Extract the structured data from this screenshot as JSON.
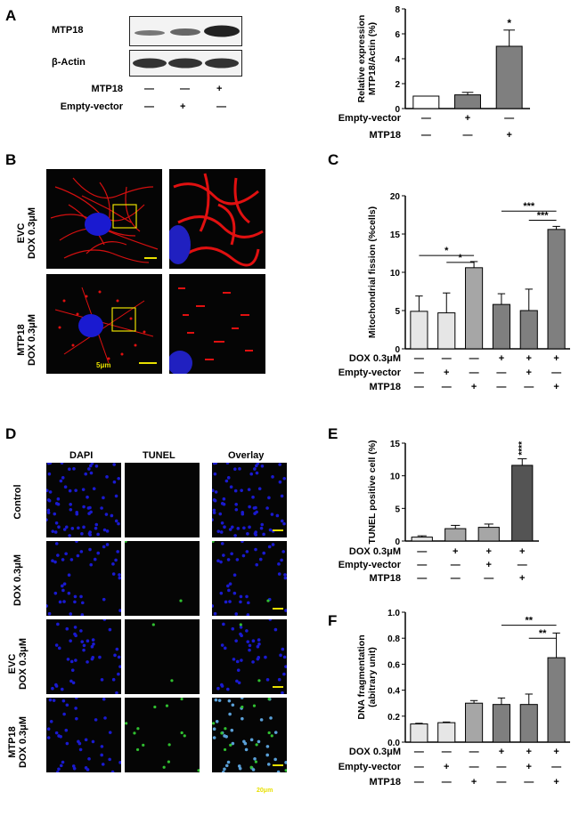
{
  "panels": {
    "A": "A",
    "B": "B",
    "C": "C",
    "D": "D",
    "E": "E",
    "F": "F"
  },
  "blot": {
    "rows": [
      "MTP18",
      "β-Actin"
    ],
    "conditions": [
      {
        "label": "MTP18",
        "marks": [
          "—",
          "—",
          "+"
        ]
      },
      {
        "label": "Empty-vector",
        "marks": [
          "—",
          "+",
          "—"
        ]
      }
    ]
  },
  "micro_b": {
    "rows": [
      {
        "line1": "EVC",
        "line2": "DOX 0.3μM"
      },
      {
        "line1": "MTP18",
        "line2": "DOX 0.3μM"
      }
    ],
    "scale": "5μm"
  },
  "micro_d": {
    "columns": [
      "DAPI",
      "TUNEL",
      "Overlay"
    ],
    "rows": [
      {
        "line1": "Control",
        "line2": ""
      },
      {
        "line1": "DOX 0.3μM",
        "line2": ""
      },
      {
        "line1": "EVC",
        "line2": "DOX 0.3μM"
      },
      {
        "line1": "MTP18",
        "line2": "DOX 0.3μM"
      }
    ],
    "scale": "20μm"
  },
  "colors": {
    "white": "#ffffff",
    "light": "#e6e6e6",
    "mid": "#a6a6a6",
    "darkmid": "#7f7f7f",
    "dark": "#545454",
    "red": "#e01010",
    "blue": "#1a1ad0",
    "green": "#30c030",
    "yellow": "#e8e000"
  },
  "chart_data": [
    {
      "id": "A",
      "type": "bar",
      "ylabel_lines": [
        "Relative expression",
        "MTP18/Actin (%)"
      ],
      "ylim": [
        0,
        8
      ],
      "yticks": [
        0,
        2,
        4,
        6,
        8
      ],
      "values": [
        1.0,
        1.1,
        5.0
      ],
      "errors": [
        0,
        0.2,
        1.3
      ],
      "fills": [
        "#ffffff",
        "#7f7f7f",
        "#7f7f7f"
      ],
      "signif": [
        "",
        "",
        "*"
      ],
      "conditions": [
        {
          "label": "Empty-vector",
          "marks": [
            "—",
            "+",
            "—"
          ]
        },
        {
          "label": "MTP18",
          "marks": [
            "—",
            "—",
            "+"
          ]
        }
      ],
      "brackets": []
    },
    {
      "id": "C",
      "type": "bar",
      "ylabel_lines": [
        "Mitochondrial fission (%cells)"
      ],
      "ylim": [
        0,
        20
      ],
      "yticks": [
        0,
        5,
        10,
        15,
        20
      ],
      "values": [
        4.9,
        4.7,
        10.6,
        5.8,
        5.0,
        15.6
      ],
      "errors": [
        2.0,
        2.6,
        0.8,
        1.4,
        2.8,
        0.4
      ],
      "fills": [
        "#e6e6e6",
        "#e6e6e6",
        "#a6a6a6",
        "#7f7f7f",
        "#7f7f7f",
        "#7f7f7f"
      ],
      "signif": [
        "",
        "",
        "",
        "",
        "",
        ""
      ],
      "conditions": [
        {
          "label": "DOX 0.3μM",
          "marks": [
            "—",
            "—",
            "—",
            "+",
            "+",
            "+"
          ]
        },
        {
          "label": "Empty-vector",
          "marks": [
            "—",
            "+",
            "—",
            "—",
            "+",
            "—"
          ]
        },
        {
          "label": "MTP18",
          "marks": [
            "—",
            "—",
            "+",
            "—",
            "—",
            "+"
          ]
        }
      ],
      "brackets": [
        {
          "from": 0,
          "to": 2,
          "y": 12.2,
          "label": "*"
        },
        {
          "from": 1,
          "to": 2,
          "y": 11.3,
          "label": "*"
        },
        {
          "from": 3,
          "to": 5,
          "y": 18.0,
          "label": "***"
        },
        {
          "from": 4,
          "to": 5,
          "y": 16.8,
          "label": "***"
        }
      ]
    },
    {
      "id": "E",
      "type": "bar",
      "ylabel_lines": [
        "TUNEL positive cell (%)"
      ],
      "ylim": [
        0,
        15
      ],
      "yticks": [
        0,
        5,
        10,
        15
      ],
      "values": [
        0.6,
        1.9,
        2.1,
        11.6
      ],
      "errors": [
        0.2,
        0.5,
        0.5,
        1.0
      ],
      "fills": [
        "#e6e6e6",
        "#a6a6a6",
        "#a6a6a6",
        "#545454"
      ],
      "signif": [
        "",
        "",
        "",
        "****"
      ],
      "conditions": [
        {
          "label": "DOX 0.3μM",
          "marks": [
            "—",
            "+",
            "+",
            "+"
          ]
        },
        {
          "label": "Empty-vector",
          "marks": [
            "—",
            "—",
            "+",
            "—"
          ]
        },
        {
          "label": "MTP18",
          "marks": [
            "—",
            "—",
            "—",
            "+"
          ]
        }
      ],
      "brackets": []
    },
    {
      "id": "F",
      "type": "bar",
      "ylabel_lines": [
        "DNA fragmentation",
        "(abitrary unit)"
      ],
      "ylim": [
        0,
        1.0
      ],
      "yticks": [
        0.0,
        0.2,
        0.4,
        0.6,
        0.8,
        1.0
      ],
      "values": [
        0.14,
        0.15,
        0.3,
        0.29,
        0.29,
        0.65
      ],
      "errors": [
        0.005,
        0.005,
        0.02,
        0.05,
        0.08,
        0.19
      ],
      "fills": [
        "#e6e6e6",
        "#e6e6e6",
        "#a6a6a6",
        "#7f7f7f",
        "#7f7f7f",
        "#7f7f7f"
      ],
      "signif": [
        "",
        "",
        "",
        "",
        "",
        ""
      ],
      "conditions": [
        {
          "label": "DOX 0.3μM",
          "marks": [
            "—",
            "—",
            "—",
            "+",
            "+",
            "+"
          ]
        },
        {
          "label": "Empty-vector",
          "marks": [
            "—",
            "+",
            "—",
            "—",
            "+",
            "—"
          ]
        },
        {
          "label": "MTP18",
          "marks": [
            "—",
            "—",
            "+",
            "—",
            "—",
            "+"
          ]
        }
      ],
      "brackets": [
        {
          "from": 3,
          "to": 5,
          "y": 0.9,
          "label": "**"
        },
        {
          "from": 4,
          "to": 5,
          "y": 0.8,
          "label": "**"
        }
      ]
    }
  ]
}
